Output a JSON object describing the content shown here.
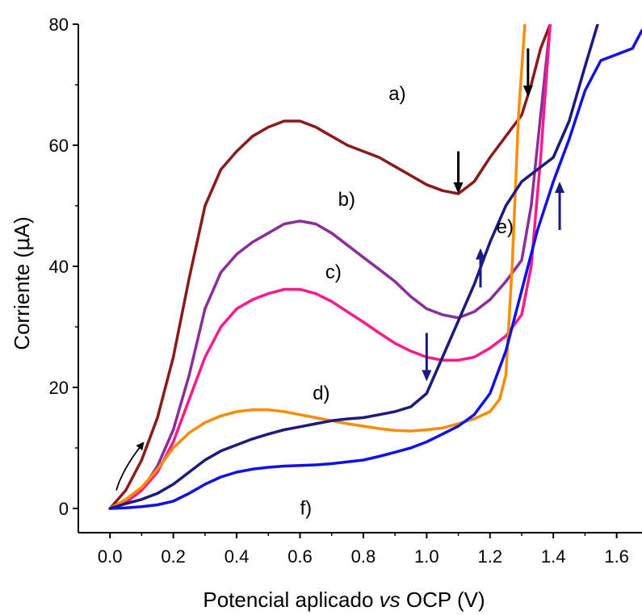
{
  "chart_data": {
    "type": "line",
    "title": "",
    "xlabel": {
      "prefix": "Potencial aplicado ",
      "italic": "vs",
      "suffix": " OCP (V)"
    },
    "ylabel": {
      "prefix": "Corriente (",
      "symbol": "μ",
      "suffix": "A)"
    },
    "xlim": [
      -0.1,
      1.68
    ],
    "ylim": [
      -4,
      80
    ],
    "x_ticks": [
      0.0,
      0.2,
      0.4,
      0.6,
      0.8,
      1.0,
      1.2,
      1.4,
      1.6
    ],
    "x_tick_labels": [
      "0.0",
      "0.2",
      "0.4",
      "0.6",
      "0.8",
      "1.0",
      "1.2",
      "1.4",
      "1.6"
    ],
    "y_ticks": [
      0,
      20,
      40,
      60,
      80
    ],
    "y_tick_labels": [
      "0",
      "20",
      "40",
      "60",
      "80"
    ],
    "grid": false,
    "series": [
      {
        "id": "a",
        "color": "#8b1a1a",
        "label": "a)",
        "x": [
          0.0,
          0.05,
          0.1,
          0.15,
          0.2,
          0.25,
          0.3,
          0.35,
          0.4,
          0.45,
          0.5,
          0.55,
          0.6,
          0.65,
          0.7,
          0.75,
          0.8,
          0.85,
          0.9,
          0.95,
          1.0,
          1.05,
          1.1,
          1.15,
          1.2,
          1.25,
          1.3,
          1.33,
          1.36,
          1.39
        ],
        "y": [
          0,
          3,
          8,
          15,
          25,
          38,
          50,
          56,
          59,
          61.5,
          63,
          64,
          64,
          63,
          61.5,
          60,
          59,
          58,
          56.5,
          55,
          53.5,
          52.5,
          52,
          54,
          58,
          61.5,
          65,
          70,
          76,
          80
        ]
      },
      {
        "id": "b",
        "color": "#8a2f9a",
        "label": "b)",
        "x": [
          0.0,
          0.05,
          0.1,
          0.15,
          0.2,
          0.25,
          0.3,
          0.35,
          0.4,
          0.45,
          0.5,
          0.55,
          0.6,
          0.65,
          0.7,
          0.75,
          0.8,
          0.85,
          0.9,
          0.95,
          1.0,
          1.05,
          1.1,
          1.15,
          1.2,
          1.25,
          1.3,
          1.33,
          1.36,
          1.39
        ],
        "y": [
          0,
          1,
          3,
          7,
          13,
          22,
          33,
          39,
          42,
          44,
          45.5,
          47,
          47.5,
          47,
          45.5,
          43.5,
          41.5,
          39.5,
          37.5,
          35,
          33,
          32,
          31.5,
          32.5,
          34.5,
          37.5,
          41,
          50,
          65,
          80
        ]
      },
      {
        "id": "c",
        "color": "#ff1a8c",
        "label": "c)",
        "x": [
          0.0,
          0.05,
          0.1,
          0.15,
          0.2,
          0.25,
          0.3,
          0.35,
          0.4,
          0.45,
          0.5,
          0.55,
          0.6,
          0.65,
          0.7,
          0.75,
          0.8,
          0.85,
          0.9,
          0.95,
          1.0,
          1.05,
          1.1,
          1.15,
          1.2,
          1.25,
          1.3,
          1.33,
          1.36,
          1.39
        ],
        "y": [
          0,
          1,
          3,
          6,
          11,
          18,
          25,
          30,
          33,
          34.5,
          35.5,
          36.2,
          36.2,
          35.5,
          34.2,
          32.5,
          30.8,
          29,
          27.3,
          26,
          25,
          24.5,
          24.5,
          25,
          26.5,
          28.5,
          32,
          40,
          58,
          80
        ]
      },
      {
        "id": "d",
        "color": "#ff8c00",
        "label": "d)",
        "x": [
          0.0,
          0.05,
          0.1,
          0.15,
          0.2,
          0.25,
          0.3,
          0.35,
          0.4,
          0.45,
          0.5,
          0.55,
          0.6,
          0.65,
          0.7,
          0.75,
          0.8,
          0.85,
          0.9,
          0.95,
          1.0,
          1.05,
          1.1,
          1.15,
          1.2,
          1.23,
          1.25,
          1.27,
          1.29,
          1.31
        ],
        "y": [
          0,
          1.5,
          3.5,
          6.5,
          10,
          12.5,
          14.2,
          15.3,
          16,
          16.3,
          16.3,
          16,
          15.5,
          15,
          14.5,
          14,
          13.6,
          13.2,
          12.9,
          12.8,
          13,
          13.3,
          14,
          14.8,
          16,
          18,
          22,
          40,
          65,
          80
        ]
      },
      {
        "id": "e",
        "color": "#1a1a80",
        "label": "e)",
        "x": [
          0.0,
          0.05,
          0.1,
          0.15,
          0.2,
          0.25,
          0.3,
          0.35,
          0.4,
          0.45,
          0.5,
          0.55,
          0.6,
          0.65,
          0.7,
          0.75,
          0.8,
          0.85,
          0.9,
          0.95,
          1.0,
          1.05,
          1.1,
          1.15,
          1.2,
          1.25,
          1.3,
          1.35,
          1.4,
          1.45,
          1.5,
          1.54
        ],
        "y": [
          0,
          0.8,
          1.5,
          2.5,
          4,
          6,
          8,
          9.5,
          10.5,
          11.5,
          12.3,
          13,
          13.5,
          14,
          14.5,
          14.8,
          15,
          15.5,
          16,
          16.8,
          19,
          25,
          31,
          37,
          44,
          50,
          54,
          56,
          58,
          64,
          73,
          80
        ]
      },
      {
        "id": "f",
        "color": "#1010e8",
        "label": "f)",
        "x": [
          0.0,
          0.05,
          0.1,
          0.15,
          0.2,
          0.25,
          0.3,
          0.35,
          0.4,
          0.45,
          0.5,
          0.55,
          0.6,
          0.65,
          0.7,
          0.75,
          0.8,
          0.85,
          0.9,
          0.95,
          1.0,
          1.05,
          1.1,
          1.15,
          1.2,
          1.25,
          1.3,
          1.35,
          1.4,
          1.45,
          1.5,
          1.55,
          1.6,
          1.65,
          1.68
        ],
        "y": [
          0,
          0.1,
          0.3,
          0.6,
          1.2,
          2.5,
          4,
          5.2,
          6,
          6.5,
          6.8,
          7,
          7.1,
          7.2,
          7.4,
          7.7,
          8,
          8.6,
          9.3,
          10,
          11,
          12.3,
          13.6,
          15.5,
          19,
          26,
          36,
          46,
          54,
          61,
          69,
          74,
          75,
          76,
          79
        ]
      }
    ],
    "annotations": [
      {
        "text": "a)",
        "x": 0.88,
        "y": 67.5
      },
      {
        "text": "b)",
        "x": 0.72,
        "y": 50
      },
      {
        "text": "c)",
        "x": 0.68,
        "y": 38
      },
      {
        "text": "d)",
        "x": 0.64,
        "y": 18
      },
      {
        "text": "e)",
        "x": 1.22,
        "y": 45.5
      },
      {
        "text": "f)",
        "x": 0.6,
        "y": -1
      }
    ],
    "arrows": [
      {
        "color": "#000000",
        "x": 1.1,
        "y_from": 59,
        "y_to": 52,
        "direction": "down"
      },
      {
        "color": "#000000",
        "x": 1.32,
        "y_from": 76,
        "y_to": 68,
        "direction": "down"
      },
      {
        "color": "#1a1a80",
        "x": 1.0,
        "y_from": 29,
        "y_to": 21,
        "direction": "down"
      },
      {
        "color": "#1a1a80",
        "x": 1.42,
        "y_from": 46,
        "y_to": 54,
        "direction": "up"
      },
      {
        "color": "#1a1a80",
        "x": 1.17,
        "y_from": 36.5,
        "y_to": 43,
        "direction": "up"
      }
    ],
    "sweep_arrow": {
      "color": "#000000",
      "from": [
        0.02,
        3
      ],
      "to": [
        0.1,
        10.5
      ]
    }
  }
}
